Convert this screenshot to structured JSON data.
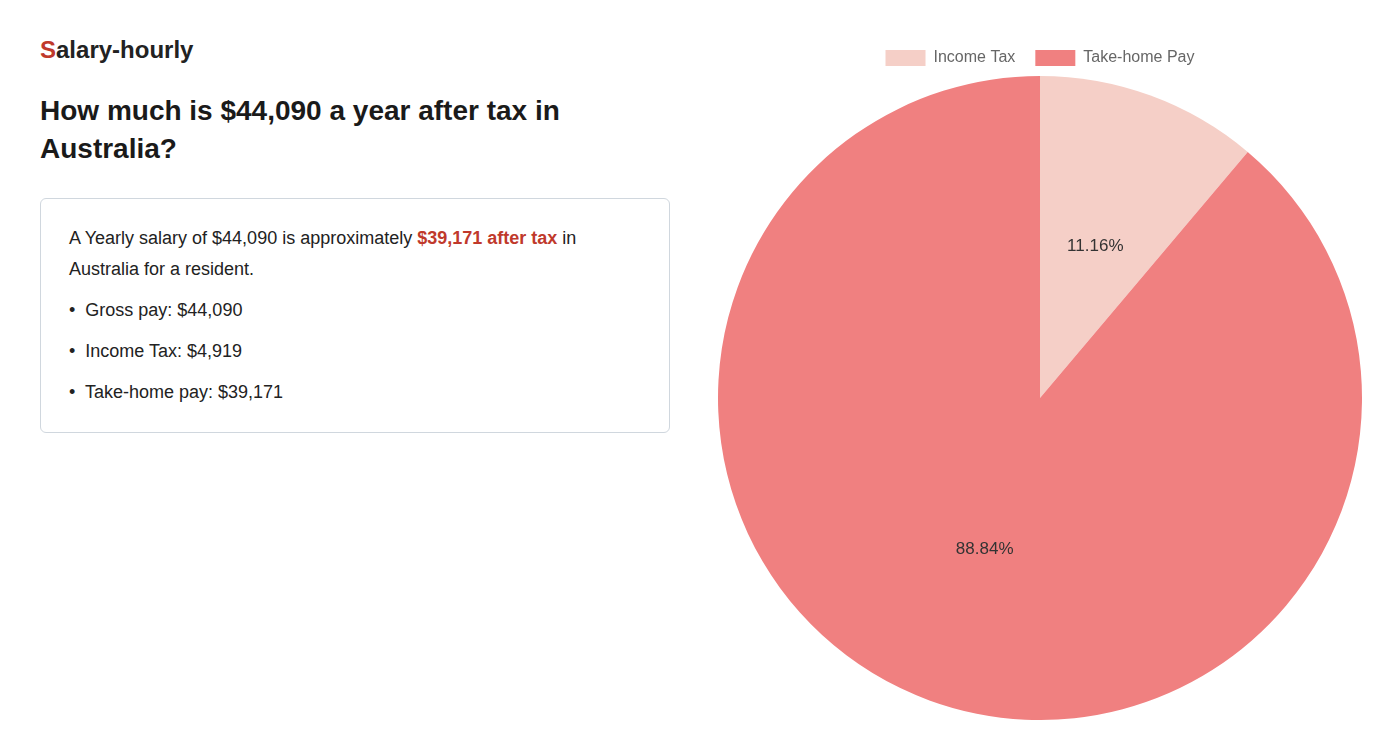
{
  "chart_data": {
    "type": "pie",
    "title": [
      "How much is $44,090 a year after tax in",
      "Australia?"
    ],
    "annotations": [
      [
        {
          "text": "S",
          "color": "#c0392b"
        },
        {
          "text": "alary-hourly"
        }
      ],
      [
        {
          "text": "A Yearly salary of $44,090 is approximately "
        },
        {
          "text": "$39,171 after tax",
          "color": "#c0392b"
        },
        {
          "text": " in"
        }
      ],
      [
        {
          "text": "Australia for a resident."
        }
      ],
      [
        {
          "text": "•  Gross pay: $44,090"
        }
      ],
      [
        {
          "text": "•  Income Tax: $4,919"
        }
      ],
      [
        {
          "text": "•  Take-home pay: $39,171"
        }
      ]
    ],
    "categories": [
      "Income Tax",
      "Take-home Pay"
    ],
    "values": [
      11.16,
      88.84
    ],
    "value_labels": [
      "11.16%",
      "88.84%"
    ],
    "colors": [
      "#f5cfc7",
      "#f08080"
    ],
    "data_labels": true,
    "legend": "top"
  }
}
